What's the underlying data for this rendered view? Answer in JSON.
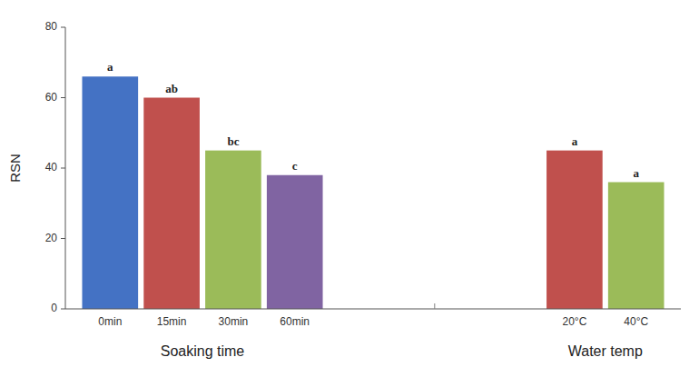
{
  "chart_data": {
    "type": "bar",
    "ylabel": "RSN",
    "groups": [
      {
        "label": "Soaking time",
        "categories": [
          "0min",
          "15min",
          "30min",
          "60min"
        ],
        "values": [
          66,
          60,
          45,
          38
        ],
        "colors": [
          "#4472C4",
          "#C0504D",
          "#9BBB59",
          "#8064A2"
        ],
        "annotations": [
          "a",
          "ab",
          "bc",
          "c"
        ]
      },
      {
        "label": "Water temp",
        "categories": [
          "20°C",
          "40°C"
        ],
        "values": [
          45,
          36
        ],
        "colors": [
          "#C0504D",
          "#9BBB59"
        ],
        "annotations": [
          "a",
          "a"
        ]
      }
    ],
    "ylim": [
      0,
      80
    ],
    "yticks": [
      0,
      20,
      40,
      60,
      80
    ]
  }
}
